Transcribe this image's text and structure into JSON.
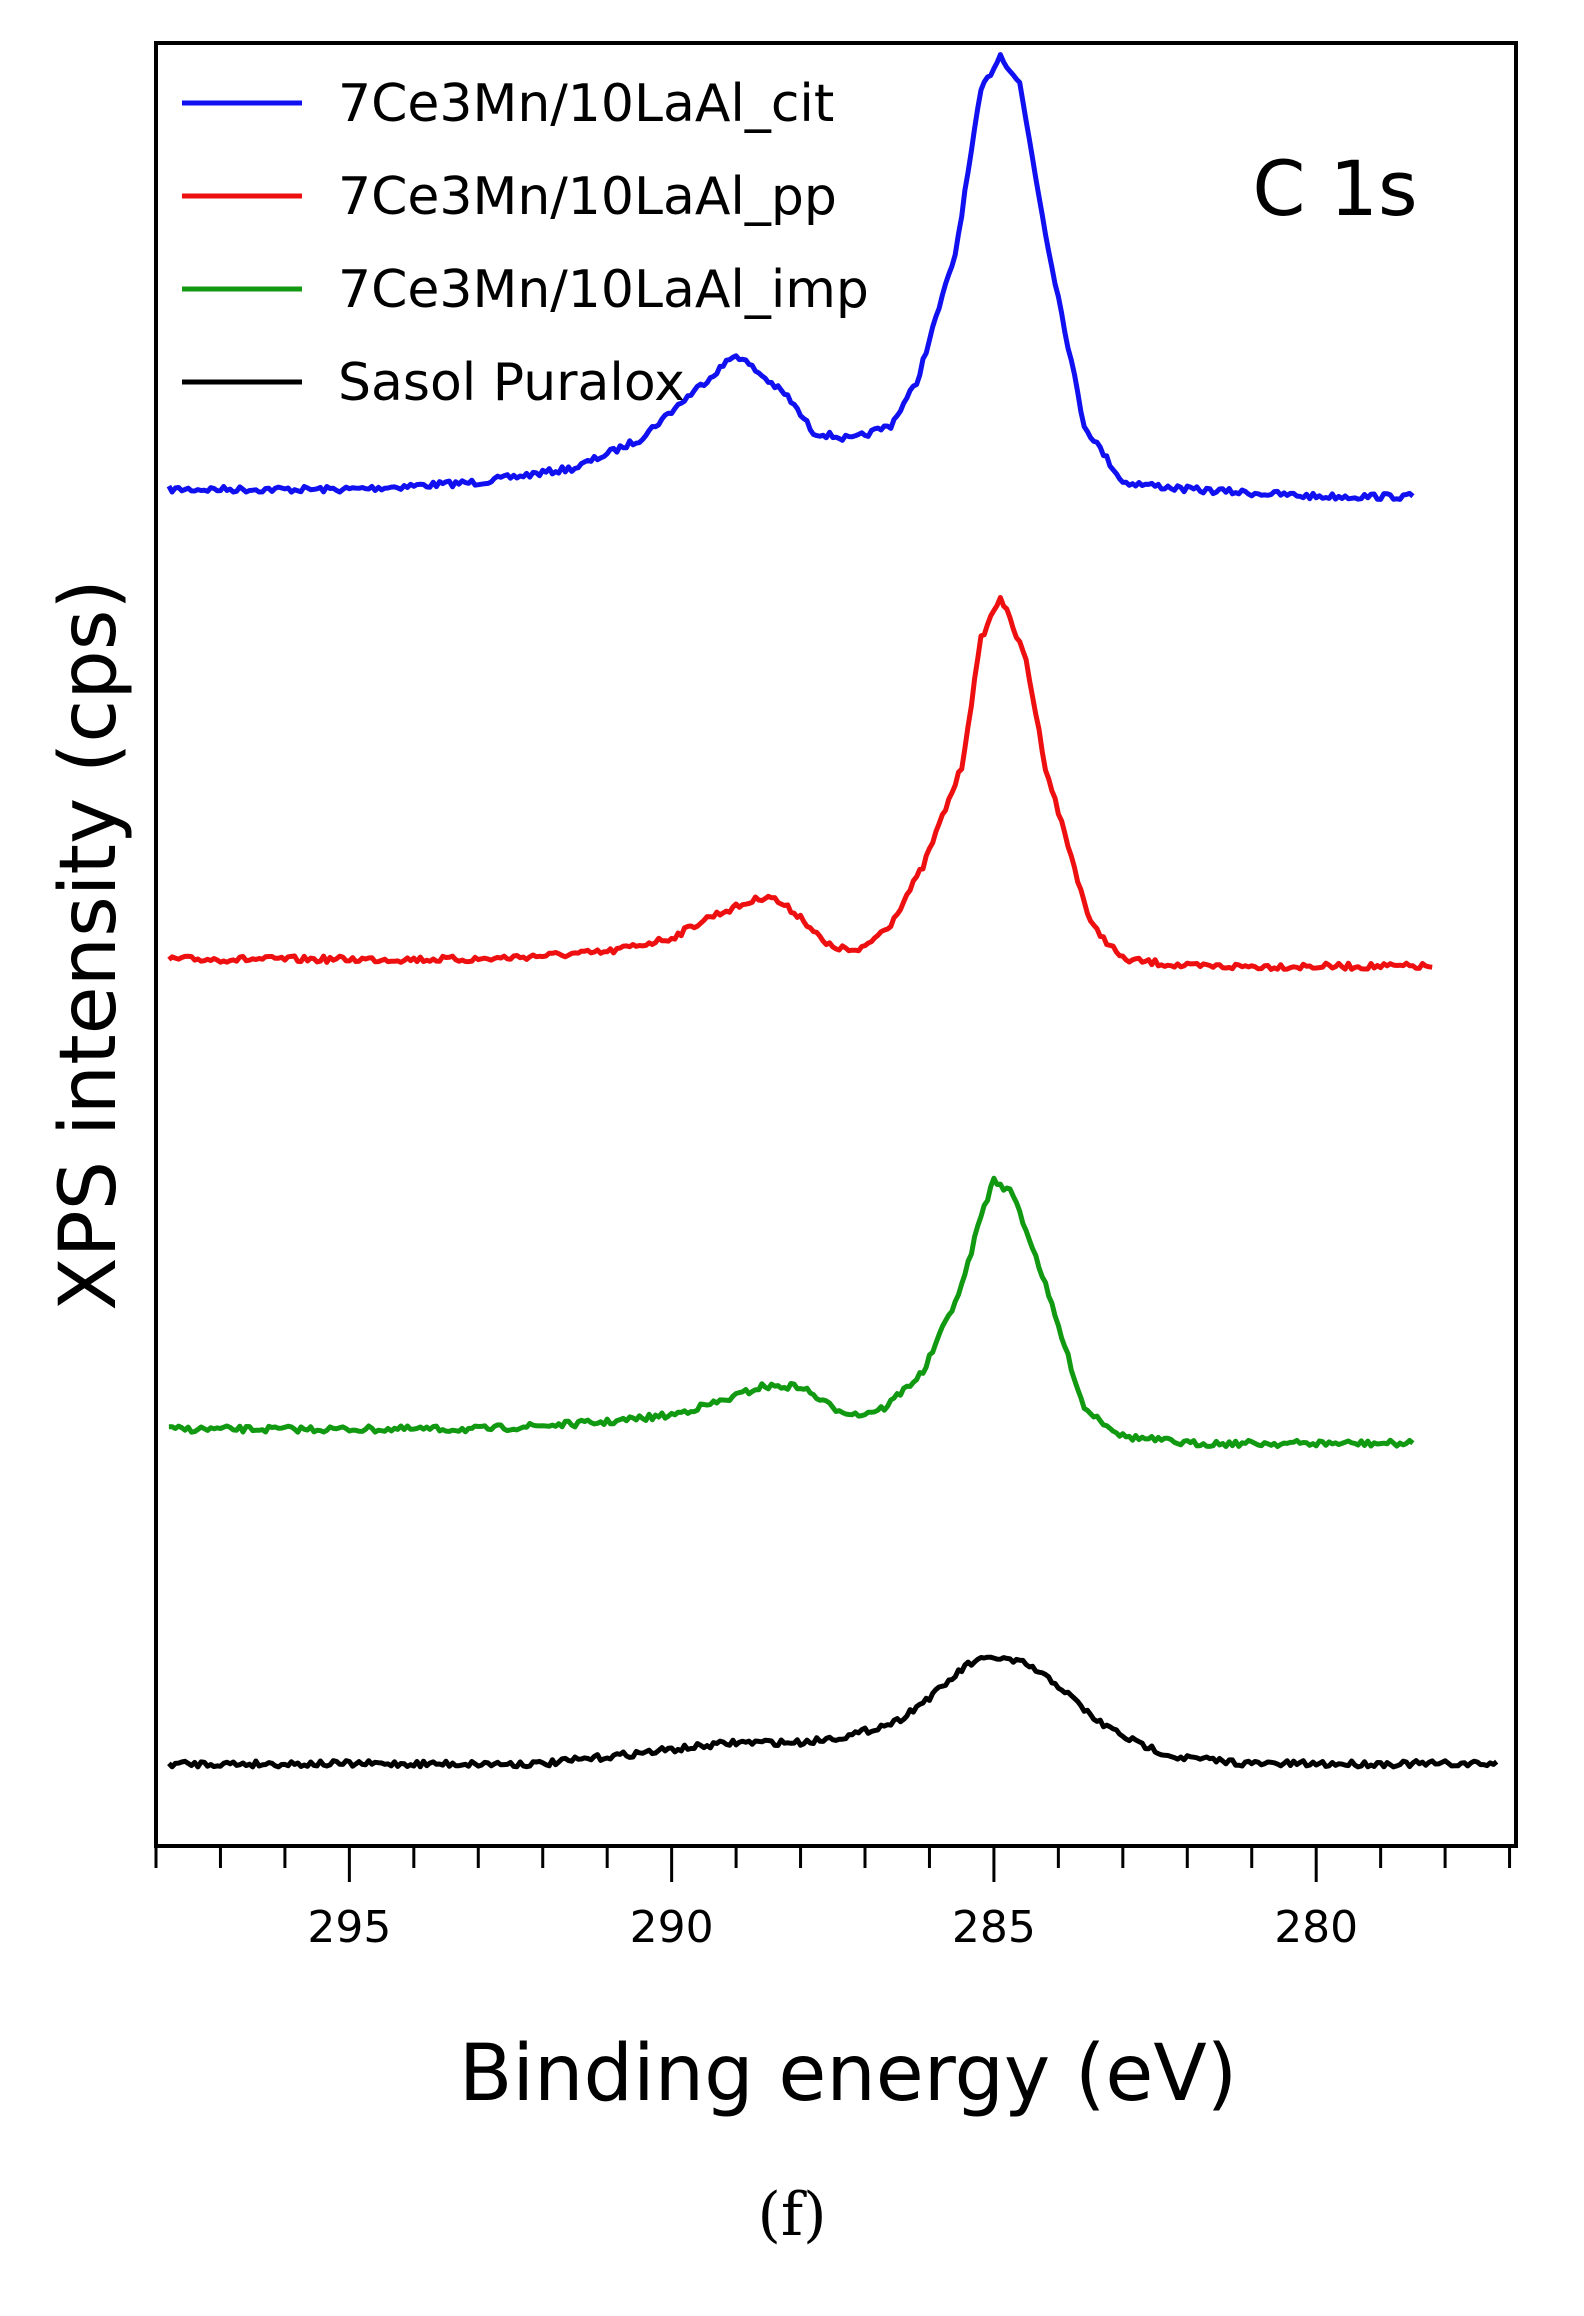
{
  "chart_data": {
    "type": "line",
    "xlabel": "Binding energy (eV)",
    "ylabel": "XPS intensity (cps)",
    "annotation": "C 1s",
    "xlim": [
      298,
      276.9
    ],
    "x_reversed": true,
    "x_ticks_major": [
      295,
      290,
      285,
      280
    ],
    "x_tick_labels": [
      "295",
      "290",
      "285",
      "280"
    ],
    "x_minor_step": 1,
    "y_ticks_shown": false,
    "y_units": "arbitrary (offset traces)",
    "legend": {
      "position": "top-left"
    },
    "series": [
      {
        "name": "7Ce3Mn/10LaAl_cit",
        "color": "#1010f0",
        "baseline": 62,
        "points": [
          [
            297.8,
            61
          ],
          [
            295,
            61
          ],
          [
            293,
            60
          ],
          [
            291.5,
            58
          ],
          [
            290.5,
            54
          ],
          [
            289.5,
            46
          ],
          [
            289,
            42
          ],
          [
            288.2,
            48
          ],
          [
            287.8,
            53
          ],
          [
            287.2,
            54
          ],
          [
            286.6,
            52
          ],
          [
            286.2,
            46
          ],
          [
            285.6,
            28
          ],
          [
            285.2,
            5
          ],
          [
            284.9,
            0
          ],
          [
            284.6,
            4
          ],
          [
            284.2,
            25
          ],
          [
            283.6,
            52
          ],
          [
            283,
            60
          ],
          [
            282,
            61
          ],
          [
            280,
            62
          ],
          [
            278.5,
            62
          ]
        ]
      },
      {
        "name": "7Ce3Mn/10LaAl_pp",
        "color": "#ee1010",
        "baseline": 128,
        "points": [
          [
            297.8,
            127
          ],
          [
            293,
            127
          ],
          [
            291,
            126
          ],
          [
            290,
            124
          ],
          [
            289.4,
            121
          ],
          [
            288.5,
            118
          ],
          [
            288,
            121
          ],
          [
            287.6,
            125
          ],
          [
            287.1,
            126
          ],
          [
            286.6,
            122
          ],
          [
            286.1,
            114
          ],
          [
            285.5,
            100
          ],
          [
            285.2,
            82
          ],
          [
            284.9,
            76
          ],
          [
            284.5,
            85
          ],
          [
            284.2,
            100
          ],
          [
            283.5,
            122
          ],
          [
            283,
            127
          ],
          [
            282,
            128
          ],
          [
            278.2,
            128
          ]
        ]
      },
      {
        "name": "7Ce3Mn/10LaAl_imp",
        "color": "#119911",
        "baseline": 196,
        "points": [
          [
            297.8,
            193
          ],
          [
            293,
            193
          ],
          [
            291,
            192
          ],
          [
            290,
            191
          ],
          [
            289.2,
            189
          ],
          [
            288.6,
            187
          ],
          [
            288,
            187
          ],
          [
            287.5,
            190
          ],
          [
            287.1,
            191
          ],
          [
            286.7,
            190
          ],
          [
            286.1,
            185
          ],
          [
            285.5,
            173
          ],
          [
            285.2,
            163
          ],
          [
            285,
            158
          ],
          [
            284.7,
            160
          ],
          [
            284.3,
            170
          ],
          [
            283.6,
            190
          ],
          [
            283,
            194
          ],
          [
            282,
            195
          ],
          [
            278.5,
            195
          ]
        ]
      },
      {
        "name": "Sasol Puralox",
        "color": "#000000",
        "baseline": 240,
        "points": [
          [
            297.8,
            240
          ],
          [
            292,
            240
          ],
          [
            291,
            239
          ],
          [
            290,
            238
          ],
          [
            289,
            237
          ],
          [
            288,
            237
          ],
          [
            287.2,
            236
          ],
          [
            286.5,
            234
          ],
          [
            285.9,
            230
          ],
          [
            285.4,
            226
          ],
          [
            285,
            225
          ],
          [
            284.5,
            226
          ],
          [
            284,
            229
          ],
          [
            283.4,
            234
          ],
          [
            282.8,
            237
          ],
          [
            282.2,
            239
          ],
          [
            281,
            240
          ],
          [
            277.2,
            240
          ]
        ]
      }
    ]
  },
  "caption": "(f)"
}
